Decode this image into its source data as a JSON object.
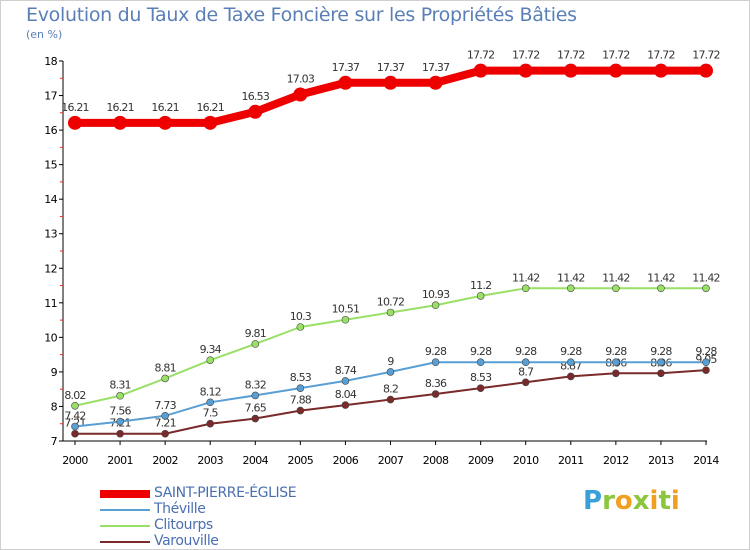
{
  "header": {
    "title": "Evolution du Taux de Taxe Foncière sur les Propriétés Bâties",
    "subtitle": "(en %)"
  },
  "logo": {
    "text": "Proxiti"
  },
  "chart_data": {
    "type": "line",
    "title": "Evolution du Taux de Taxe Foncière sur les Propriétés Bâties",
    "ylabel": "(en %)",
    "xlabel": "",
    "ylim": [
      7,
      18
    ],
    "yticks": [
      7,
      8,
      9,
      10,
      11,
      12,
      13,
      14,
      15,
      16,
      17,
      18
    ],
    "categories": [
      "2000",
      "2001",
      "2002",
      "2003",
      "2004",
      "2005",
      "2006",
      "2007",
      "2008",
      "2009",
      "2010",
      "2011",
      "2012",
      "2013",
      "2014"
    ],
    "legend_position": "bottom-left",
    "grid": false,
    "series": [
      {
        "name": "SAINT-PIERRE-ÉGLISE",
        "color": "#ee0000",
        "values": [
          16.21,
          16.21,
          16.21,
          16.21,
          16.53,
          17.03,
          17.37,
          17.37,
          17.37,
          17.72,
          17.72,
          17.72,
          17.72,
          17.72,
          17.72
        ],
        "labels": [
          "16.21",
          "16.21",
          "16.21",
          "16.21",
          "16.53",
          "17.03",
          "17.37",
          "17.37",
          "17.37",
          "17.72",
          "17.72",
          "17.72",
          "17.72",
          "17.72",
          "17.72"
        ]
      },
      {
        "name": "Théville",
        "color": "#5a9fd4",
        "values": [
          7.42,
          7.56,
          7.73,
          8.12,
          8.32,
          8.53,
          8.74,
          9,
          9.28,
          9.28,
          9.28,
          9.28,
          9.28,
          9.28,
          9.28
        ],
        "labels": [
          "7.42",
          "7.56",
          "7.73",
          "8.12",
          "8.32",
          "8.53",
          "8.74",
          "9",
          "9.28",
          "9.28",
          "9.28",
          "9.28",
          "9.28",
          "9.28",
          "9.28"
        ]
      },
      {
        "name": "Clitourps",
        "color": "#99e066",
        "values": [
          8.02,
          8.31,
          8.81,
          9.34,
          9.81,
          10.3,
          10.51,
          10.72,
          10.93,
          11.2,
          11.42,
          11.42,
          11.42,
          11.42,
          11.42
        ],
        "labels": [
          "8.02",
          "8.31",
          "8.81",
          "9.34",
          "9.81",
          "10.3",
          "10.51",
          "10.72",
          "10.93",
          "11.2",
          "11.42",
          "11.42",
          "11.42",
          "11.42",
          "11.42"
        ]
      },
      {
        "name": "Varouville",
        "color": "#7a2a2a",
        "values": [
          7.21,
          7.21,
          7.21,
          7.5,
          7.65,
          7.88,
          8.04,
          8.2,
          8.36,
          8.53,
          8.7,
          8.87,
          8.96,
          8.96,
          9.05
        ],
        "labels": [
          "7.21",
          "7.21",
          "7.21",
          "7.5",
          "7.65",
          "7.88",
          "8.04",
          "8.2",
          "8.36",
          "8.53",
          "8.7",
          "8.87",
          "8.96",
          "8.96",
          "9.05"
        ]
      }
    ]
  }
}
